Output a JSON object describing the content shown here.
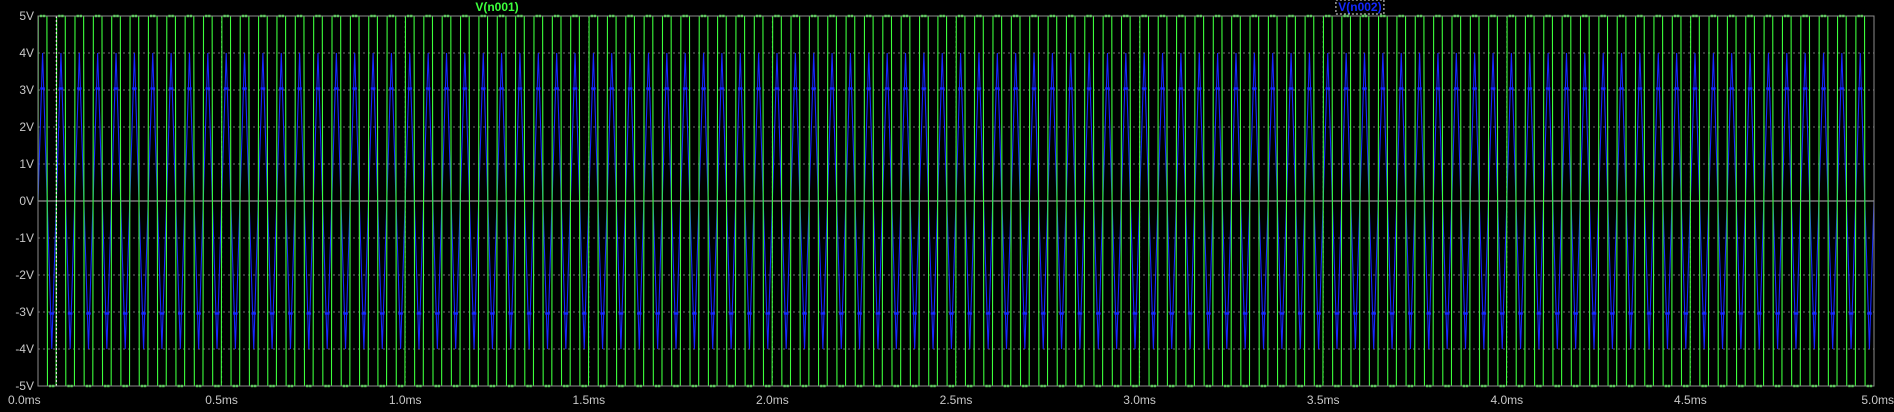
{
  "chart_data": {
    "type": "line",
    "x_unit": "ms",
    "y_unit": "V",
    "xlim": [
      0.0,
      5.0
    ],
    "ylim": [
      -5,
      5
    ],
    "x_ticks": [
      "0.0ms",
      "0.5ms",
      "1.0ms",
      "1.5ms",
      "2.0ms",
      "2.5ms",
      "3.0ms",
      "3.5ms",
      "4.0ms",
      "4.5ms",
      "5.0ms"
    ],
    "y_ticks": [
      "5V",
      "4V",
      "3V",
      "2V",
      "1V",
      "0V",
      "-1V",
      "-2V",
      "-3V",
      "-4V",
      "-5V"
    ],
    "grid": true,
    "legend_placement": "top",
    "cursor_time_ms": 0.05,
    "series": [
      {
        "name": "V(n001)",
        "color": "#3cff3c",
        "waveform": "square",
        "frequency_khz": 20,
        "amplitude_v": 5,
        "offset_v": 0
      },
      {
        "name": "V(n002)",
        "color": "#1428ff",
        "waveform": "triangle",
        "frequency_khz": 20,
        "amplitude_v": 4,
        "offset_v": 0,
        "phase_shift_cycles": 0.25,
        "start_value_v": 0
      }
    ]
  },
  "colors": {
    "background": "#000000",
    "grid": "#6e6e6e",
    "axis_text": "#c8c8c8",
    "frame": "#8c8c8c",
    "cursor": "#e8e8e8"
  }
}
